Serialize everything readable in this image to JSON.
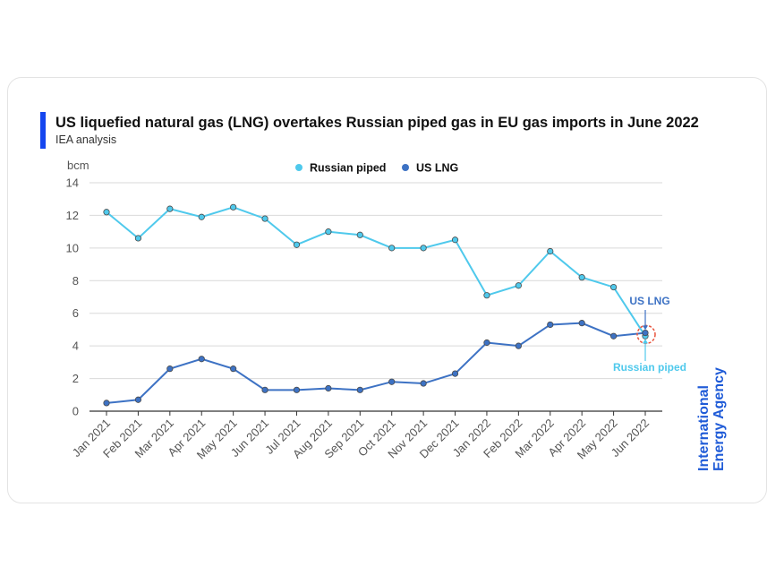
{
  "header": {
    "title": "US liquefied natural gas (LNG) overtakes Russian piped gas in EU gas imports in June 2022",
    "subtitle": "IEA analysis"
  },
  "brand": {
    "line1": "International",
    "line2": "Energy Agency",
    "color": "#1f5bd7"
  },
  "chart_data": {
    "type": "line",
    "ylabel": "bcm",
    "ylim": [
      0,
      14
    ],
    "yticks": [
      0,
      2,
      4,
      6,
      8,
      10,
      12,
      14
    ],
    "grid": true,
    "legend_position": "top-center",
    "categories": [
      "Jan 2021",
      "Feb 2021",
      "Mar 2021",
      "Apr 2021",
      "May 2021",
      "Jun 2021",
      "Jul 2021",
      "Aug 2021",
      "Sep 2021",
      "Oct 2021",
      "Nov 2021",
      "Dec 2021",
      "Jan 2022",
      "Feb 2022",
      "Mar 2022",
      "Apr 2022",
      "May 2022",
      "Jun 2022"
    ],
    "series": [
      {
        "name": "Russian piped",
        "color": "#4fc9ec",
        "values": [
          12.2,
          10.6,
          12.4,
          11.9,
          12.5,
          11.8,
          10.2,
          11.0,
          10.8,
          10.0,
          10.0,
          10.5,
          7.1,
          7.7,
          9.8,
          8.2,
          7.6,
          4.6
        ]
      },
      {
        "name": "US LNG",
        "color": "#3d72c4",
        "values": [
          0.5,
          0.7,
          2.6,
          3.2,
          2.6,
          1.3,
          1.3,
          1.4,
          1.3,
          1.8,
          1.7,
          2.3,
          4.2,
          4.0,
          5.3,
          5.4,
          4.6,
          4.8
        ]
      }
    ],
    "annotations": [
      {
        "text": "US LNG",
        "color": "#3d72c4"
      },
      {
        "text": "Russian piped",
        "color": "#4fc9ec"
      }
    ],
    "highlight_color": "#e8533c"
  }
}
